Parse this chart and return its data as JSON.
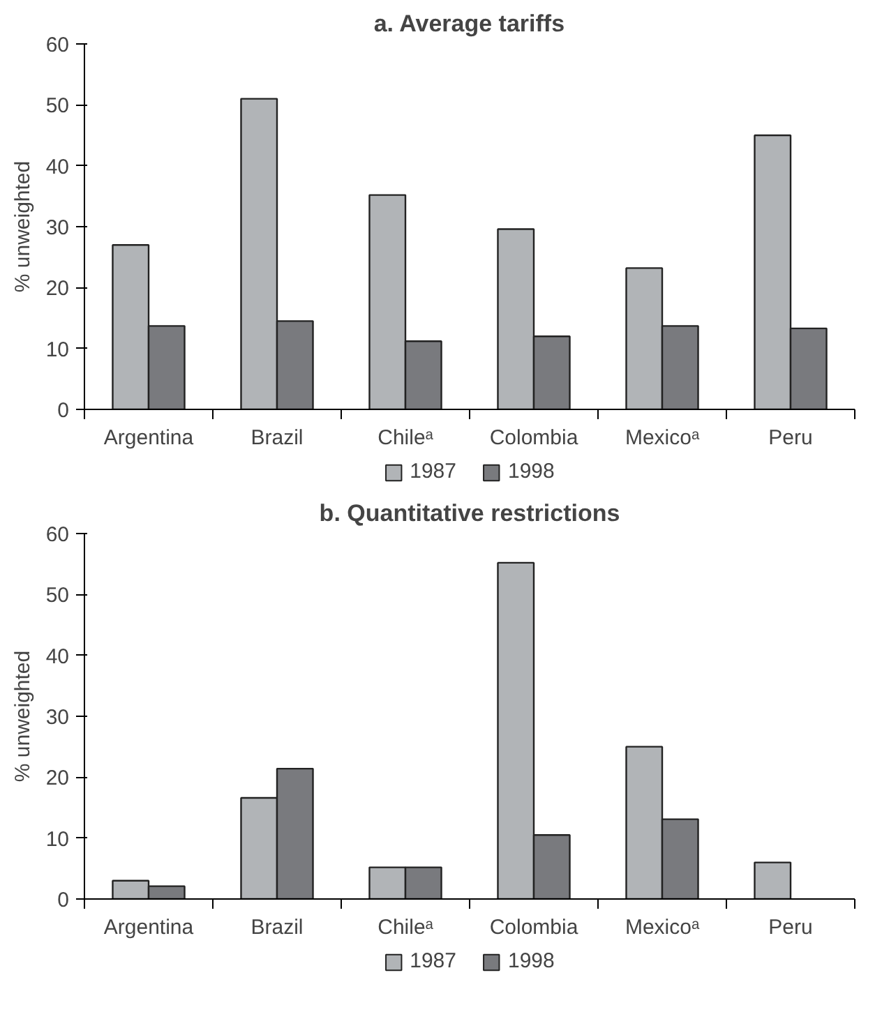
{
  "chart_data": [
    {
      "type": "bar",
      "title": "a. Average tariffs",
      "ylabel": "% unweighted",
      "categories": [
        "Argentina",
        "Brazil",
        "Chileᵃ",
        "Colombia",
        "Mexicoᵃ",
        "Peru"
      ],
      "series": [
        {
          "name": "1987",
          "color": "#b1b4b7",
          "values": [
            27,
            51,
            35.2,
            29.6,
            23.2,
            45
          ]
        },
        {
          "name": "1998",
          "color": "#797a7e",
          "values": [
            13.7,
            14.5,
            11.2,
            12,
            13.7,
            13.3
          ]
        }
      ],
      "ylim": [
        0,
        60
      ],
      "yticks": [
        0,
        10,
        20,
        30,
        40,
        50,
        60
      ],
      "grid": false,
      "legend": "bottom"
    },
    {
      "type": "bar",
      "title": "b. Quantitative restrictions",
      "ylabel": "% unweighted",
      "categories": [
        "Argentina",
        "Brazil",
        "Chileᵃ",
        "Colombia",
        "Mexicoᵃ",
        "Peru"
      ],
      "series": [
        {
          "name": "1987",
          "color": "#b1b4b7",
          "values": [
            3,
            16.6,
            5.2,
            55.2,
            25,
            6
          ]
        },
        {
          "name": "1998",
          "color": "#797a7e",
          "values": [
            2.1,
            21.4,
            5.2,
            10.5,
            13.1,
            null
          ]
        }
      ],
      "ylim": [
        0,
        60
      ],
      "yticks": [
        0,
        10,
        20,
        30,
        40,
        50,
        60
      ],
      "grid": false,
      "legend": "bottom"
    }
  ]
}
